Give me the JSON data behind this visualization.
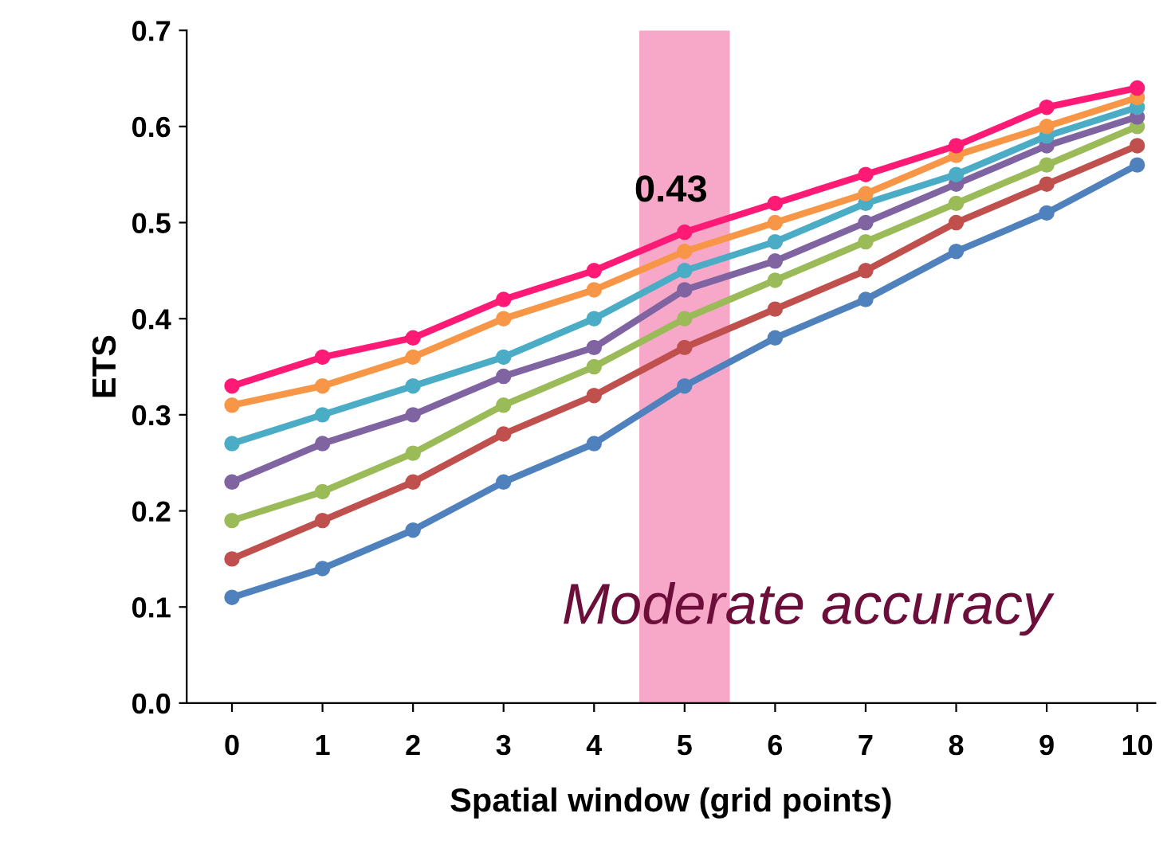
{
  "chart_data": {
    "type": "line",
    "xlabel": "Spatial window (grid points)",
    "ylabel": "ETS",
    "x": [
      0,
      1,
      2,
      3,
      4,
      5,
      6,
      7,
      8,
      9,
      10
    ],
    "series": [
      {
        "color": "#4f81bd",
        "values": [
          0.11,
          0.14,
          0.18,
          0.23,
          0.27,
          0.33,
          0.38,
          0.42,
          0.47,
          0.51,
          0.56
        ]
      },
      {
        "color": "#c0504d",
        "values": [
          0.15,
          0.19,
          0.23,
          0.28,
          0.32,
          0.37,
          0.41,
          0.45,
          0.5,
          0.54,
          0.58
        ]
      },
      {
        "color": "#9bbb59",
        "values": [
          0.19,
          0.22,
          0.26,
          0.31,
          0.35,
          0.4,
          0.44,
          0.48,
          0.52,
          0.56,
          0.6
        ]
      },
      {
        "color": "#8064a2",
        "values": [
          0.23,
          0.27,
          0.3,
          0.34,
          0.37,
          0.43,
          0.46,
          0.5,
          0.54,
          0.58,
          0.61
        ]
      },
      {
        "color": "#4bacc6",
        "values": [
          0.27,
          0.3,
          0.33,
          0.36,
          0.4,
          0.45,
          0.48,
          0.52,
          0.55,
          0.59,
          0.62
        ]
      },
      {
        "color": "#f79646",
        "values": [
          0.31,
          0.33,
          0.36,
          0.4,
          0.43,
          0.47,
          0.5,
          0.53,
          0.57,
          0.6,
          0.63
        ]
      },
      {
        "color": "#ff1a75",
        "values": [
          0.33,
          0.36,
          0.38,
          0.42,
          0.45,
          0.49,
          0.52,
          0.55,
          0.58,
          0.62,
          0.64
        ]
      }
    ],
    "xlim": [
      -0.5,
      10.2
    ],
    "xticks": [
      0,
      1,
      2,
      3,
      4,
      5,
      6,
      7,
      8,
      9,
      10
    ],
    "ylim": [
      0,
      0.7
    ],
    "yticks": [
      {
        "value": 0,
        "label": "0.0"
      },
      {
        "value": 0.1,
        "label": "0.1"
      },
      {
        "value": 0.2,
        "label": "0.2"
      },
      {
        "value": 0.3,
        "label": "0.3"
      },
      {
        "value": 0.4,
        "label": "0.4"
      },
      {
        "value": 0.5,
        "label": "0.5"
      },
      {
        "value": 0.6,
        "label": "0.6"
      },
      {
        "value": 0.7,
        "label": "0.7"
      }
    ],
    "bands": [
      {
        "axis": "x",
        "from": 4.5,
        "to": 5.5,
        "color": "#f7a8c8"
      }
    ],
    "annotations": [
      "0.43",
      "Moderate accuracy"
    ],
    "marker": "circle",
    "line_style": "solid",
    "grid": false,
    "legend": false
  }
}
